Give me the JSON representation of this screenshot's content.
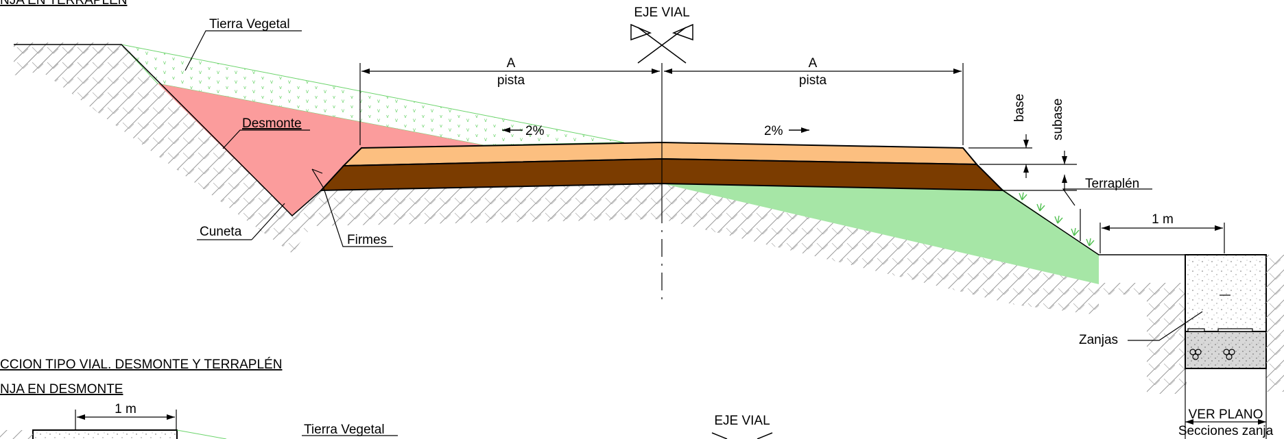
{
  "top_section": {
    "title_fragment": "NJA EN TERRAPLÉN",
    "eje_vial": "EJE VIAL",
    "tierra_vegetal": "Tierra Vegetal",
    "desmonte": "Desmonte",
    "cuneta": "Cuneta",
    "firmes": "Firmes",
    "terraplen": "Terraplén",
    "zanjas": "Zanjas",
    "base": "base",
    "subase": "subase",
    "dim_left": {
      "letter": "A",
      "label": "pista"
    },
    "dim_right": {
      "letter": "A",
      "label": "pista"
    },
    "slope_left": "2%",
    "slope_right": "2%",
    "dim_trench": "1 m",
    "ver_plano": "VER PLANO",
    "secciones_zanja": "Secciones zanja"
  },
  "section_titles": {
    "main": "CCION TIPO VIAL. DESMONTE Y TERRAPLÉN",
    "sub": "NJA EN DESMONTE"
  },
  "bottom_section": {
    "dim_trench": "1 m",
    "tierra_vegetal": "Tierra Vegetal",
    "eje_vial": "EJE VIAL"
  },
  "colors": {
    "desmonte_fill": "#fb9c9c",
    "subbase_fill": "#7b3c00",
    "base_fill": "#fcbf80",
    "terraplen_fill": "#a6e6a6",
    "vegetal_dots": "#6bd46b",
    "hatch": "#9a9a9a"
  }
}
